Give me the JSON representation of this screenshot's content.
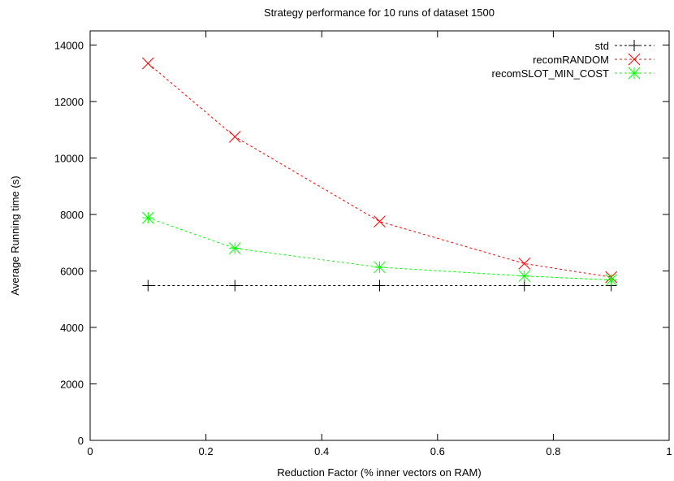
{
  "chart_data": {
    "type": "line",
    "title": "Strategy performance for 10 runs of dataset 1500",
    "xlabel": "Reduction Factor (% inner vectors on RAM)",
    "ylabel": "Average Running time (s)",
    "xlim": [
      0,
      1
    ],
    "ylim": [
      0,
      14500
    ],
    "x_ticks": [
      "0",
      "0.2",
      "0.4",
      "0.6",
      "0.8",
      "1"
    ],
    "y_ticks": [
      "0",
      "2000",
      "4000",
      "6000",
      "8000",
      "10000",
      "12000",
      "14000"
    ],
    "legend_position": "top-right",
    "grid": false,
    "x": [
      0.1,
      0.25,
      0.5,
      0.75,
      0.9
    ],
    "series": [
      {
        "name": "std",
        "values": [
          5480,
          5480,
          5480,
          5480,
          5480
        ],
        "color": "#000000",
        "marker": "plus"
      },
      {
        "name": "recomRANDOM",
        "values": [
          13350,
          10750,
          7750,
          6260,
          5780
        ],
        "color": "#ff0000",
        "marker": "cross"
      },
      {
        "name": "recomSLOT_MIN_COST",
        "values": [
          7880,
          6800,
          6130,
          5820,
          5680
        ],
        "color": "#00ff00",
        "marker": "star"
      }
    ]
  }
}
